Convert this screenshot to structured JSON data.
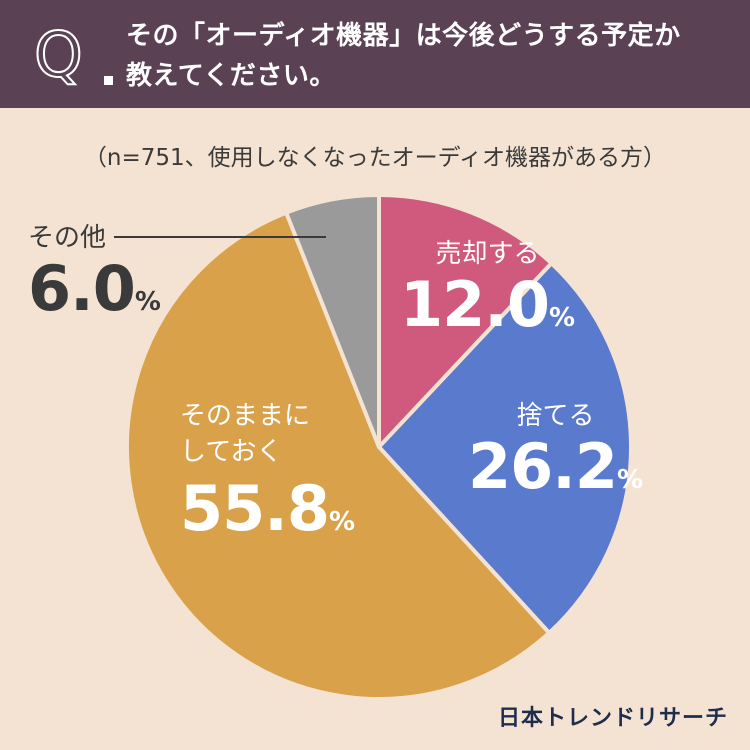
{
  "header": {
    "q_mark": "Q",
    "question_line1": "その「オーディオ機器」は今後どうする予定か",
    "question_line2": "教えてください。"
  },
  "sample_note": "（n=751、使用しなくなったオーディオ機器がある方）",
  "brand": "日本トレンドリサーチ",
  "chart_data": {
    "type": "pie",
    "unit": "%",
    "start": "top, clockwise",
    "slices": [
      {
        "label": "売却する",
        "value": 12.0,
        "value_text": "12.0",
        "color": "#d05a7d"
      },
      {
        "label": "捨てる",
        "value": 26.2,
        "value_text": "26.2",
        "color": "#5a7acd"
      },
      {
        "label": "そのままにしておく",
        "label_line1": "そのままに",
        "label_line2": "しておく",
        "value": 55.8,
        "value_text": "55.8",
        "color": "#d9a24a"
      },
      {
        "label": "その他",
        "value": 6.0,
        "value_text": "6.0",
        "color": "#9a9a9a"
      }
    ],
    "slice_border_color": "#f4e3d3"
  }
}
